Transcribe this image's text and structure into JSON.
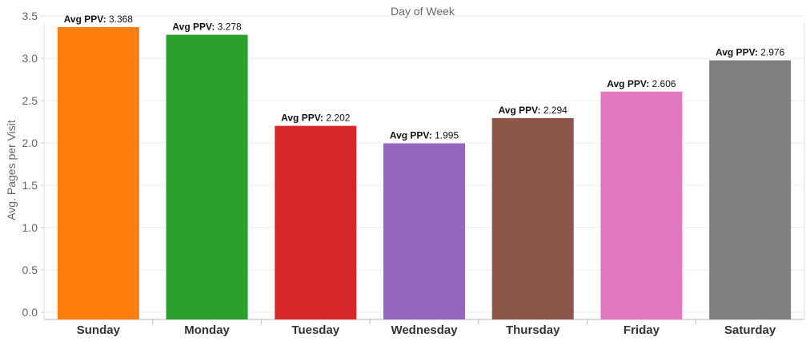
{
  "chart_data": {
    "type": "bar",
    "title": "Day of Week",
    "xlabel": "",
    "ylabel": "Avg. Pages per Visit",
    "categories": [
      "Sunday",
      "Monday",
      "Tuesday",
      "Wednesday",
      "Thursday",
      "Friday",
      "Saturday"
    ],
    "values": [
      3.368,
      3.278,
      2.202,
      1.995,
      2.294,
      2.606,
      2.976
    ],
    "data_label_prefix": "Avg PPV:",
    "data_labels": [
      "3.368",
      "3.278",
      "2.202",
      "1.995",
      "2.294",
      "2.606",
      "2.976"
    ],
    "ylim": [
      0,
      3.5
    ],
    "yticks": [
      0.0,
      0.5,
      1.0,
      1.5,
      2.0,
      2.5,
      3.0,
      3.5
    ],
    "ytick_labels": [
      "0.0",
      "0.5",
      "1.0",
      "1.5",
      "2.0",
      "2.5",
      "3.0",
      "3.5"
    ],
    "colors": [
      "#ff7f0e",
      "#2ca02c",
      "#d62728",
      "#9467bd",
      "#8c564b",
      "#e377c2",
      "#7f7f7f"
    ],
    "grid": true,
    "legend": "none"
  }
}
